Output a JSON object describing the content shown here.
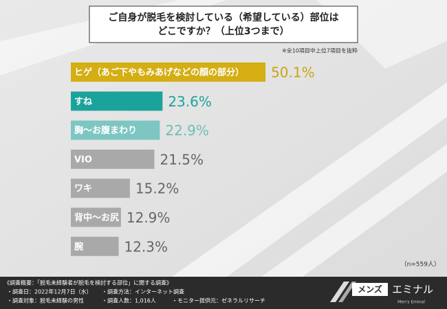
{
  "chart_data": {
    "type": "bar",
    "orientation": "horizontal",
    "title_lines": [
      "ご自身が脱毛を検討している（希望している）部位は",
      "どこですか？（上位3つまで）"
    ],
    "note": "※全10項目中上位7項目を抜粋",
    "categories": [
      "ヒゲ（あご下やもみあげなどの顔の部分）",
      "すね",
      "胸～お腹まわり",
      "VIO",
      "ワキ",
      "背中～お尻",
      "腕"
    ],
    "values": [
      50.1,
      23.6,
      22.9,
      21.5,
      15.2,
      12.9,
      12.3
    ],
    "value_labels": [
      "50.1%",
      "23.6%",
      "22.9%",
      "21.5%",
      "15.2%",
      "12.9%",
      "12.3%"
    ],
    "colors": [
      "#d4ae12",
      "#1ba39b",
      "#7dc6c2",
      "#a9a9a9",
      "#a9a9a9",
      "#a9a9a9",
      "#a9a9a9"
    ],
    "value_label_colors": [
      "#c9a40f",
      "#1ba39b",
      "#6fbdb8",
      "#666666",
      "#666666",
      "#666666",
      "#666666"
    ],
    "sample_note": "（n=559人）"
  },
  "footer": {
    "lines": [
      "《調査概要：「脱毛未経験者が脱毛を検討する部位」に関する調査》",
      "・調査日：2022年12月7日（水）",
      "・調査方法：インターネット調査",
      "・調査対象：脱毛未経験の男性",
      "・調査人数：1,016人",
      "・モニター提供元：ゼネラルリサーチ"
    ]
  },
  "logo": {
    "brand_left": "メンズ",
    "brand_right": "エミナル",
    "tagline": "Men's Eminal"
  }
}
